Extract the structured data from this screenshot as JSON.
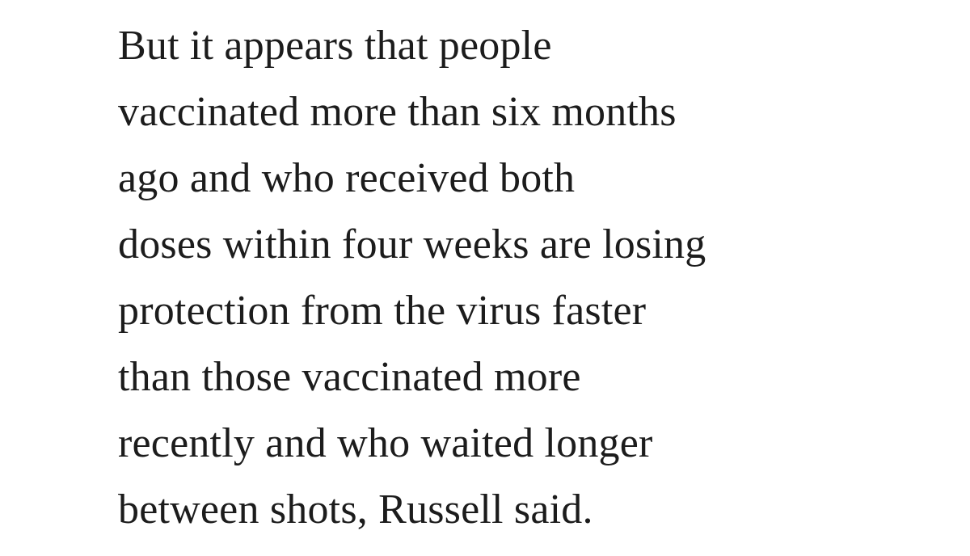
{
  "article": {
    "paragraph_lines": [
      "But it appears that people",
      "vaccinated more than six months",
      "ago and who received both",
      "doses within four weeks are losing",
      "protection from the virus faster",
      "than those vaccinated more",
      "recently and who waited longer",
      "between shots, Russell said."
    ]
  },
  "colors": {
    "text": "#1c1c1c",
    "background": "#ffffff"
  }
}
